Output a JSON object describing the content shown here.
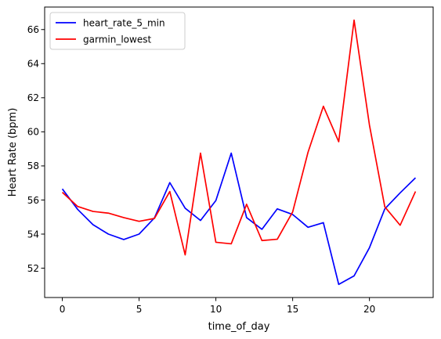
{
  "chart_data": {
    "type": "line",
    "title": "",
    "xlabel": "time_of_day",
    "ylabel": "Heart Rate (bpm)",
    "xlim": [
      -1.15,
      24.15
    ],
    "ylim": [
      50.28,
      67.32
    ],
    "xticks": [
      0,
      5,
      10,
      15,
      20
    ],
    "yticks": [
      52,
      54,
      56,
      58,
      60,
      62,
      64,
      66
    ],
    "legend": "upper-left",
    "grid": false,
    "x": [
      0,
      1,
      2,
      3,
      4,
      5,
      6,
      7,
      8,
      9,
      10,
      11,
      12,
      13,
      14,
      15,
      16,
      17,
      18,
      19,
      20,
      21,
      22,
      23
    ],
    "series": [
      {
        "name": "heart_rate_5_min",
        "color": "#0000ff",
        "values": [
          56.65,
          55.45,
          54.55,
          54.0,
          53.68,
          54.0,
          54.95,
          57.02,
          55.52,
          54.8,
          55.97,
          58.75,
          54.97,
          54.28,
          55.48,
          55.15,
          54.4,
          54.67,
          51.05,
          51.55,
          53.2,
          55.48,
          56.42,
          57.3
        ]
      },
      {
        "name": "garmin_lowest",
        "color": "#ff0000",
        "values": [
          56.45,
          55.62,
          55.33,
          55.23,
          54.97,
          54.75,
          54.92,
          56.5,
          52.78,
          58.75,
          53.52,
          53.43,
          55.75,
          53.62,
          53.7,
          55.3,
          58.8,
          61.5,
          59.42,
          66.55,
          60.4,
          55.6,
          54.52,
          56.5
        ]
      }
    ]
  }
}
